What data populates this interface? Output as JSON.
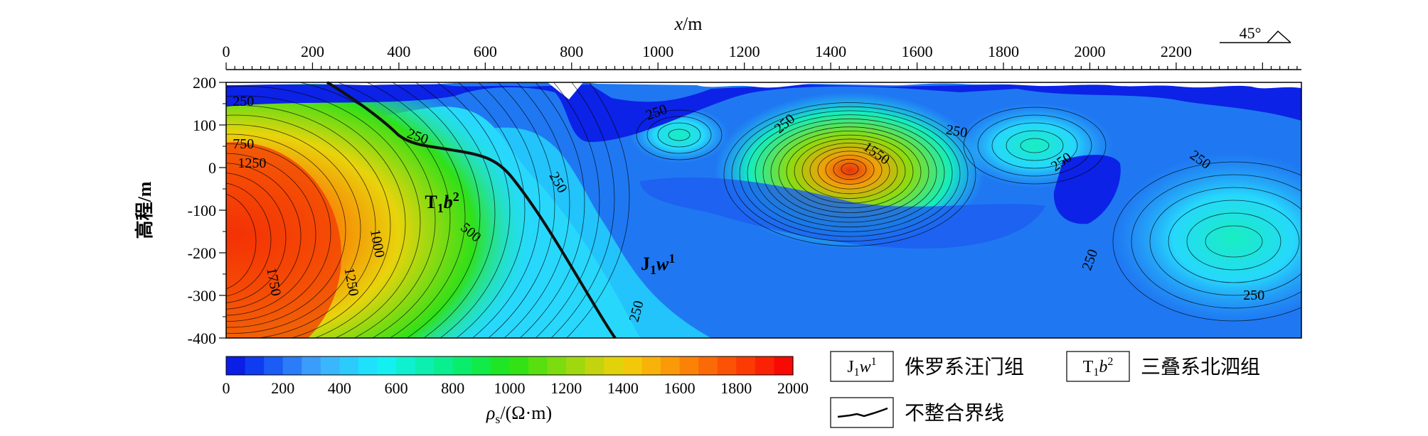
{
  "chart_data": {
    "type": "heatmap",
    "xlabel_var": "x",
    "xlabel_unit": "/m",
    "ylabel": "高程/m",
    "x_ticks": [
      "0",
      "200",
      "400",
      "600",
      "800",
      "1000",
      "1200",
      "1400",
      "1600",
      "1800",
      "2000",
      "2200"
    ],
    "x_tick_values": [
      0,
      200,
      400,
      600,
      800,
      1000,
      1200,
      1400,
      1600,
      1800,
      2000,
      2200
    ],
    "xlim": [
      0,
      2490
    ],
    "y_ticks": [
      "200",
      "100",
      "0",
      "-100",
      "-200",
      "-300",
      "-400"
    ],
    "y_tick_values": [
      200,
      100,
      0,
      -100,
      -200,
      -300,
      -400
    ],
    "ylim": [
      -400,
      200
    ],
    "orientation_label": "45°",
    "colorbar": {
      "ticks": [
        "0",
        "200",
        "400",
        "600",
        "800",
        "1000",
        "1200",
        "1400",
        "1600",
        "1800",
        "2000"
      ],
      "tick_values": [
        0,
        200,
        400,
        600,
        800,
        1000,
        1200,
        1400,
        1600,
        1800,
        2000
      ],
      "label_var": "ρ",
      "label_sub": "s",
      "label_unit": "/(Ω·m)",
      "colors": [
        "#0a1ee6",
        "#0f3cf0",
        "#1a5cf5",
        "#2a7cf8",
        "#3a9cfb",
        "#3ab6fc",
        "#2ccbfd",
        "#1fe0fd",
        "#14f0f2",
        "#0ff0d0",
        "#0cefb0",
        "#0aee90",
        "#0aec6c",
        "#12ea48",
        "#1ee624",
        "#33e214",
        "#58df10",
        "#7cdc10",
        "#a0d80f",
        "#c3d40e",
        "#e2d20c",
        "#f4c80a",
        "#f8b209",
        "#fa9a08",
        "#fb8207",
        "#fb6a06",
        "#fb5205",
        "#fb3a04",
        "#fa2204",
        "#f80a04"
      ]
    },
    "contour_labels": [
      {
        "text": "250",
        "x": 40,
        "y": 145,
        "rot": 0
      },
      {
        "text": "750",
        "x": 40,
        "y": 45,
        "rot": 0
      },
      {
        "text": "1250",
        "x": 60,
        "y": 0,
        "rot": 0
      },
      {
        "text": "250",
        "x": 440,
        "y": 63,
        "rot": 20
      },
      {
        "text": "250",
        "x": 760,
        "y": -40,
        "rot": 60
      },
      {
        "text": "500",
        "x": 560,
        "y": -160,
        "rot": 40
      },
      {
        "text": "1000",
        "x": 340,
        "y": -180,
        "rot": 80
      },
      {
        "text": "1250",
        "x": 280,
        "y": -270,
        "rot": 80
      },
      {
        "text": "1750",
        "x": 100,
        "y": -270,
        "rot": 80
      },
      {
        "text": "250",
        "x": 1000,
        "y": 120,
        "rot": -20
      },
      {
        "text": "250",
        "x": 1300,
        "y": 95,
        "rot": -40
      },
      {
        "text": "1550",
        "x": 1500,
        "y": 25,
        "rot": 35
      },
      {
        "text": "250",
        "x": 1690,
        "y": 75,
        "rot": 10
      },
      {
        "text": "250",
        "x": 1940,
        "y": 5,
        "rot": -35
      },
      {
        "text": "250",
        "x": 2250,
        "y": 10,
        "rot": 35
      },
      {
        "text": "250",
        "x": 2010,
        "y": -220,
        "rot": -70
      },
      {
        "text": "250",
        "x": 2380,
        "y": -310,
        "rot": 0
      },
      {
        "text": "250",
        "x": 960,
        "y": -340,
        "rot": -75
      }
    ],
    "unit_labels": [
      {
        "base": "J",
        "sub": "1",
        "ital": "w",
        "sup": "1",
        "x": 1000,
        "y": -240
      },
      {
        "base": "T",
        "sub": "1",
        "ital": "b",
        "sup": "2",
        "x": 500,
        "y": -95
      }
    ]
  },
  "legend": {
    "items": [
      {
        "box_base": "J",
        "box_sub": "1",
        "box_ital": "w",
        "box_sup": "1",
        "label": "侏罗系汪门组"
      },
      {
        "box_base": "T",
        "box_sub": "1",
        "box_ital": "b",
        "box_sup": "2",
        "label": "三叠系北泗组"
      },
      {
        "label": "不整合界线"
      }
    ]
  }
}
